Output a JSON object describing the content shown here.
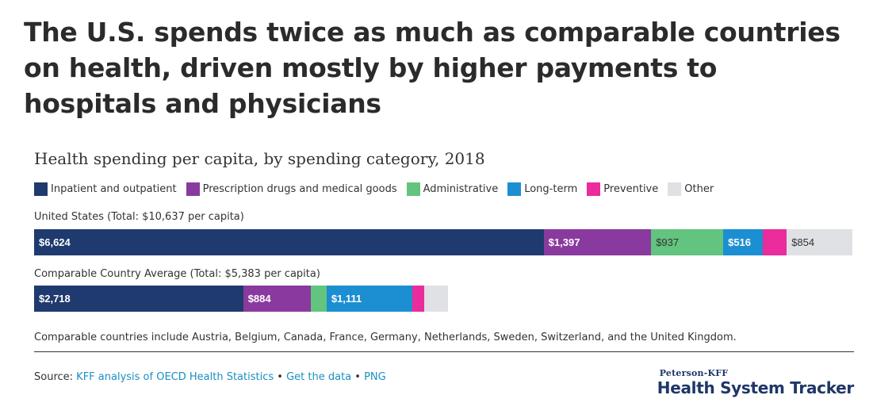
{
  "headline": "The U.S. spends twice as much as comparable countries on health, driven mostly by higher payments to hospitals and physicians",
  "chart_data": {
    "type": "bar",
    "orientation": "horizontal",
    "stacked": true,
    "title": "Health spending per capita, by spending category, 2018",
    "legend_position": "top",
    "categories": [
      "United States (Total: $10,637 per capita)",
      "Comparable Country Average (Total: $5,383 per capita)"
    ],
    "totals": [
      10637,
      5383
    ],
    "series": [
      {
        "name": "Inpatient and outpatient",
        "color": "#1f3a6e",
        "values": [
          6624,
          2718
        ],
        "labels": [
          "$6,624",
          "$2,718"
        ],
        "label_color": "light-on-dark"
      },
      {
        "name": "Prescription drugs and medical goods",
        "color": "#8a3a9e",
        "values": [
          1397,
          884
        ],
        "labels": [
          "$1,397",
          "$884"
        ],
        "label_color": "light-on-dark"
      },
      {
        "name": "Administrative",
        "color": "#62c47e",
        "values": [
          937,
          200
        ],
        "labels": [
          "$937",
          ""
        ],
        "label_color": "dark-on-light"
      },
      {
        "name": "Long-term",
        "color": "#1b8fd2",
        "values": [
          516,
          1111
        ],
        "labels": [
          "$516",
          "$1,111"
        ],
        "label_color": "light-on-dark"
      },
      {
        "name": "Preventive",
        "color": "#ea2c9c",
        "values": [
          310,
          160
        ],
        "labels": [
          "",
          ""
        ],
        "label_color": "light-on-dark"
      },
      {
        "name": "Other",
        "color": "#dfe1e4",
        "values": [
          854,
          310
        ],
        "labels": [
          "$854",
          ""
        ],
        "label_color": "dark-on-light"
      }
    ]
  },
  "footnote": "Comparable countries include Austria, Belgium, Canada, France, Germany, Netherlands, Sweden, Switzerland, and the United Kingdom.",
  "source": {
    "prefix": "Source: ",
    "link_analysis": "KFF analysis of OECD Health Statistics",
    "sep1": " • ",
    "link_data": "Get the data",
    "sep2": " • ",
    "link_png": "PNG"
  },
  "logo": {
    "top": "Peterson-KFF",
    "main": "Health System Tracker"
  }
}
